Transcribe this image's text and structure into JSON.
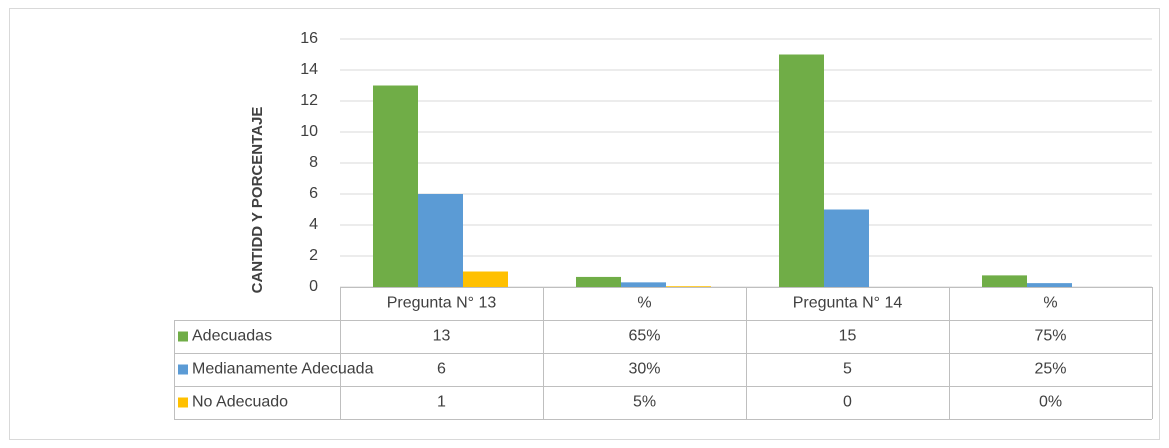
{
  "chart_data": {
    "type": "bar",
    "y_axis_label": "CANTIDD Y PORCENTAJE",
    "categories": [
      "Pregunta N° 13",
      "%",
      "Pregunta N° 14",
      "%"
    ],
    "series": [
      {
        "name": "Adecuadas",
        "color": "#70ad47",
        "values": [
          13,
          0.65,
          15,
          0.75
        ],
        "value_labels": [
          "13",
          "65%",
          "15",
          "75%"
        ]
      },
      {
        "name": "Medianamente Adecuada",
        "color": "#5b9bd5",
        "values": [
          6,
          0.3,
          5,
          0.25
        ],
        "value_labels": [
          "6",
          "30%",
          "5",
          "25%"
        ]
      },
      {
        "name": "No Adecuado",
        "color": "#ffc000",
        "values": [
          1,
          0.05,
          0,
          0
        ],
        "value_labels": [
          "1",
          "5%",
          "0",
          "0%"
        ]
      }
    ],
    "ylim": [
      0,
      16
    ],
    "yticks": [
      0,
      2,
      4,
      6,
      8,
      10,
      12,
      14,
      16
    ],
    "grid": true,
    "data_table": true
  }
}
